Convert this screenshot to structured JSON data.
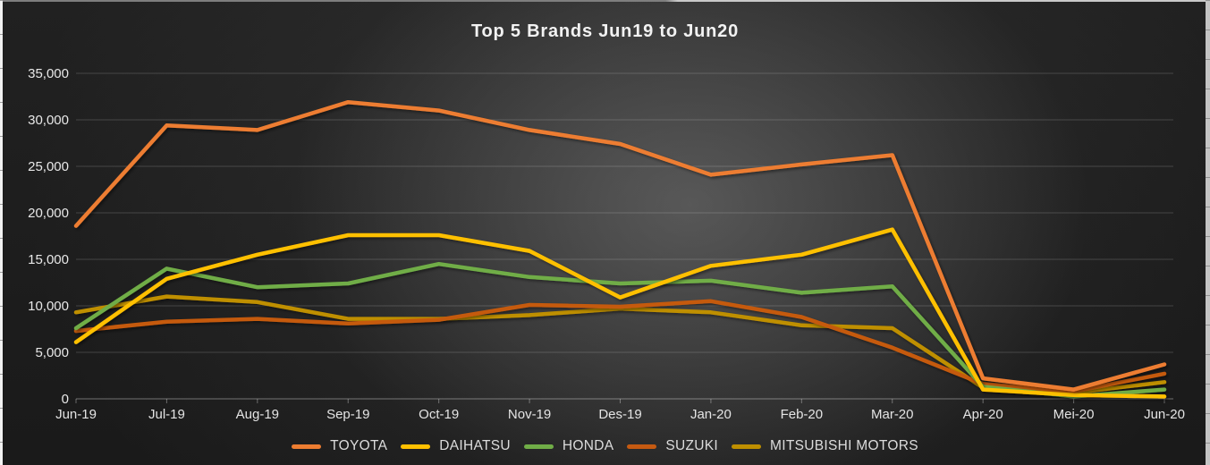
{
  "chart_data": {
    "type": "line",
    "title": "Top 5 Brands Jun19 to Jun20",
    "categories": [
      "Jun-19",
      "Jul-19",
      "Aug-19",
      "Sep-19",
      "Oct-19",
      "Nov-19",
      "Des-19",
      "Jan-20",
      "Feb-20",
      "Mar-20",
      "Apr-20",
      "Mei-20",
      "Jun-20"
    ],
    "series": [
      {
        "name": "TOYOTA",
        "color": "#ED7D31",
        "values": [
          18600,
          29400,
          28900,
          31900,
          31000,
          28900,
          27400,
          24100,
          25200,
          26200,
          2200,
          1000,
          3700
        ]
      },
      {
        "name": "DAIHATSU",
        "color": "#FFC000",
        "values": [
          6100,
          12900,
          15500,
          17600,
          17600,
          15900,
          10900,
          14300,
          15500,
          18200,
          1000,
          400,
          250
        ]
      },
      {
        "name": "HONDA",
        "color": "#70AD47",
        "values": [
          7600,
          14000,
          12000,
          12400,
          14500,
          13100,
          12400,
          12700,
          11400,
          12100,
          1300,
          250,
          1000
        ]
      },
      {
        "name": "SUZUKI",
        "color": "#C55A11",
        "values": [
          7300,
          8300,
          8600,
          8100,
          8500,
          10100,
          9900,
          10500,
          8800,
          5500,
          1600,
          800,
          2700
        ]
      },
      {
        "name": "MITSUBISHI MOTORS",
        "color": "#BF8F00",
        "values": [
          9300,
          11000,
          10400,
          8600,
          8600,
          9000,
          9700,
          9300,
          7900,
          7600,
          1200,
          650,
          1800
        ]
      }
    ],
    "ylim": [
      0,
      35000
    ],
    "y_tick_step": 5000,
    "y_tick_labels": [
      "0",
      "5,000",
      "10,000",
      "15,000",
      "20,000",
      "25,000",
      "30,000",
      "35,000"
    ],
    "grid": true,
    "legend_position": "bottom"
  }
}
